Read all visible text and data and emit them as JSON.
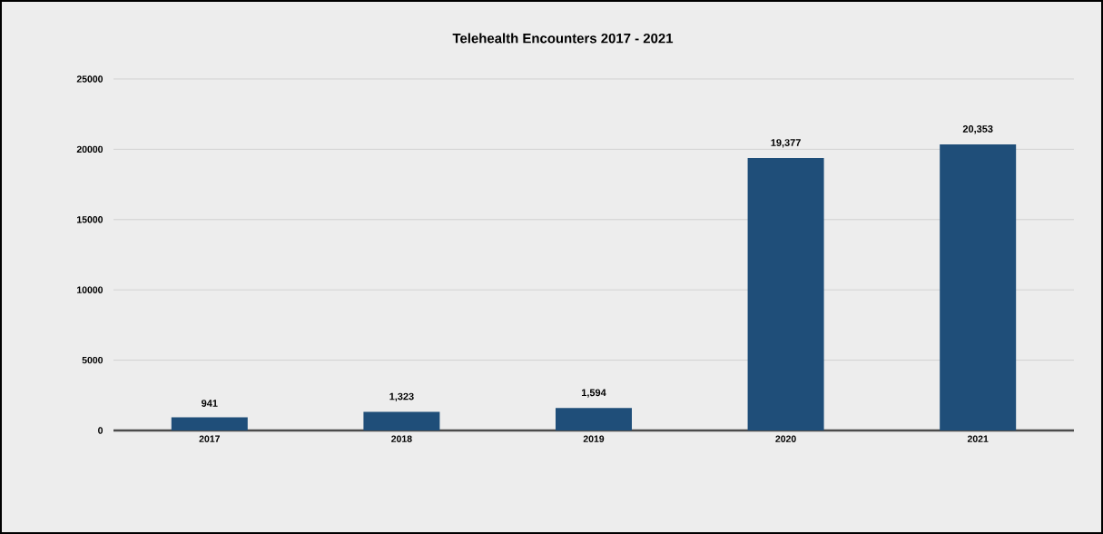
{
  "chart_data": {
    "type": "bar",
    "title": "Telehealth Encounters  2017 - 2021",
    "categories": [
      "2017",
      "2018",
      "2019",
      "2020",
      "2021"
    ],
    "values": [
      941,
      1323,
      1594,
      19377,
      20353
    ],
    "value_labels": [
      "941",
      "1,323",
      "1,594",
      "19,377",
      "20,353"
    ],
    "color": "#1f4e79",
    "ylim": [
      0,
      25000
    ],
    "yticks": [
      0,
      5000,
      10000,
      15000,
      20000,
      25000
    ],
    "grid": "y"
  }
}
